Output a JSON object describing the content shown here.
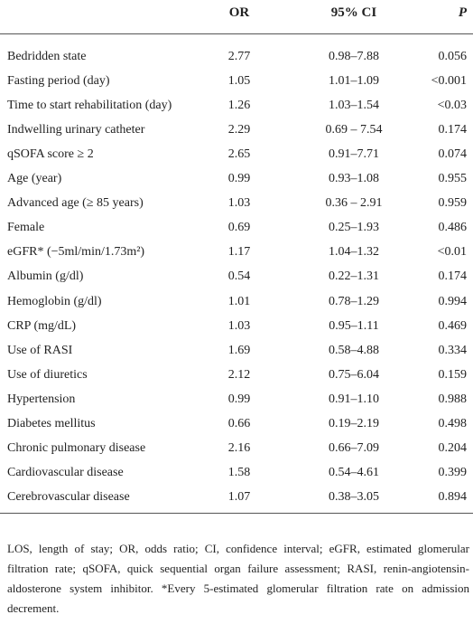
{
  "table": {
    "header": [
      "OR",
      "95% CI",
      "P"
    ],
    "rows": [
      [
        "Bedridden state",
        "2.77",
        "0.98–7.88",
        "0.056"
      ],
      [
        "Fasting period (day)",
        "1.05",
        "1.01–1.09",
        "<0.001"
      ],
      [
        "Time to start rehabilitation (day)",
        "1.26",
        "1.03–1.54",
        "<0.03"
      ],
      [
        "Indwelling urinary catheter",
        "2.29",
        "0.69 – 7.54",
        "0.174"
      ],
      [
        "qSOFA score ≥ 2",
        "2.65",
        "0.91–7.71",
        "0.074"
      ],
      [
        "Age (year)",
        "0.99",
        "0.93–1.08",
        "0.955"
      ],
      [
        "Advanced age (≥ 85 years)",
        "1.03",
        "0.36 – 2.91",
        "0.959"
      ],
      [
        "Female",
        "0.69",
        "0.25–1.93",
        "0.486"
      ],
      [
        "eGFR* (−5ml/min/1.73m²)",
        "1.17",
        "1.04–1.32",
        "<0.01"
      ],
      [
        "Albumin (g/dl)",
        "0.54",
        "0.22–1.31",
        "0.174"
      ],
      [
        "Hemoglobin (g/dl)",
        "1.01",
        "0.78–1.29",
        "0.994"
      ],
      [
        "CRP (mg/dL)",
        "1.03",
        "0.95–1.11",
        "0.469"
      ],
      [
        "Use of RASI",
        "1.69",
        "0.58–4.88",
        "0.334"
      ],
      [
        "Use of diuretics",
        "2.12",
        "0.75–6.04",
        "0.159"
      ],
      [
        "Hypertension",
        "0.99",
        "0.91–1.10",
        "0.988"
      ],
      [
        "Diabetes mellitus",
        "0.66",
        "0.19–2.19",
        "0.498"
      ],
      [
        "Chronic pulmonary disease",
        "2.16",
        "0.66–7.09",
        "0.204"
      ],
      [
        "Cardiovascular disease",
        "1.58",
        "0.54–4.61",
        "0.399"
      ],
      [
        "Cerebrovascular disease",
        "1.07",
        "0.38–3.05",
        "0.894"
      ]
    ]
  },
  "footnote": "LOS, length of stay; OR, odds ratio; CI, confidence interval; eGFR, estimated glomerular filtration rate; qSOFA, quick sequential organ failure assessment; RASI, renin-angiotensin-aldosterone system inhibitor. *Every 5-estimated glomerular filtration rate on admission decrement."
}
